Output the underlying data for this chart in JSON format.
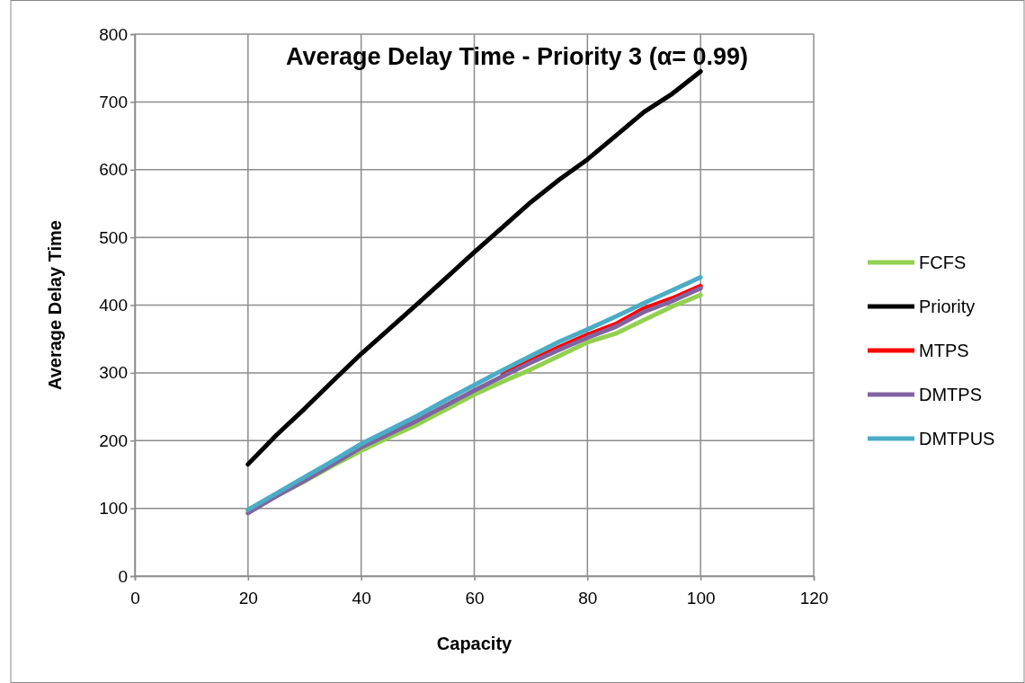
{
  "chart_data": {
    "type": "line",
    "title": "Average Delay Time - Priority 3 (α= 0.99)",
    "xlabel": "Capacity",
    "ylabel": "Average Delay Time",
    "x": [
      20,
      25,
      30,
      35,
      40,
      45,
      50,
      55,
      60,
      65,
      70,
      75,
      80,
      85,
      90,
      95,
      100
    ],
    "series": [
      {
        "name": "FCFS",
        "color": "#92d050",
        "values": [
          97,
          118,
          140,
          163,
          185,
          205,
          224,
          246,
          268,
          287,
          305,
          325,
          345,
          358,
          378,
          398,
          415
        ]
      },
      {
        "name": "Priority",
        "color": "#000000",
        "values": [
          165,
          208,
          247,
          288,
          328,
          365,
          402,
          440,
          478,
          515,
          552,
          585,
          615,
          650,
          685,
          712,
          745
        ]
      },
      {
        "name": "MTPS",
        "color": "#ff0000",
        "values": [
          null,
          null,
          null,
          null,
          null,
          null,
          null,
          null,
          null,
          298,
          318,
          338,
          356,
          372,
          395,
          410,
          428
        ]
      },
      {
        "name": "DMTPS",
        "color": "#8064a2",
        "values": [
          93,
          118,
          141,
          165,
          190,
          210,
          230,
          252,
          274,
          295,
          315,
          334,
          352,
          368,
          390,
          406,
          425
        ]
      },
      {
        "name": "DMTPUS",
        "color": "#4bacc6",
        "values": [
          98,
          122,
          146,
          170,
          195,
          216,
          237,
          260,
          282,
          304,
          325,
          346,
          364,
          383,
          403,
          422,
          441
        ]
      }
    ],
    "xlim": [
      0,
      120
    ],
    "xticks": [
      0,
      20,
      40,
      60,
      80,
      100,
      120
    ],
    "ylim": [
      0,
      800
    ],
    "yticks": [
      0,
      100,
      200,
      300,
      400,
      500,
      600,
      700,
      800
    ],
    "grid": true,
    "legend": "right",
    "marker": "none",
    "line_style": "solid"
  }
}
